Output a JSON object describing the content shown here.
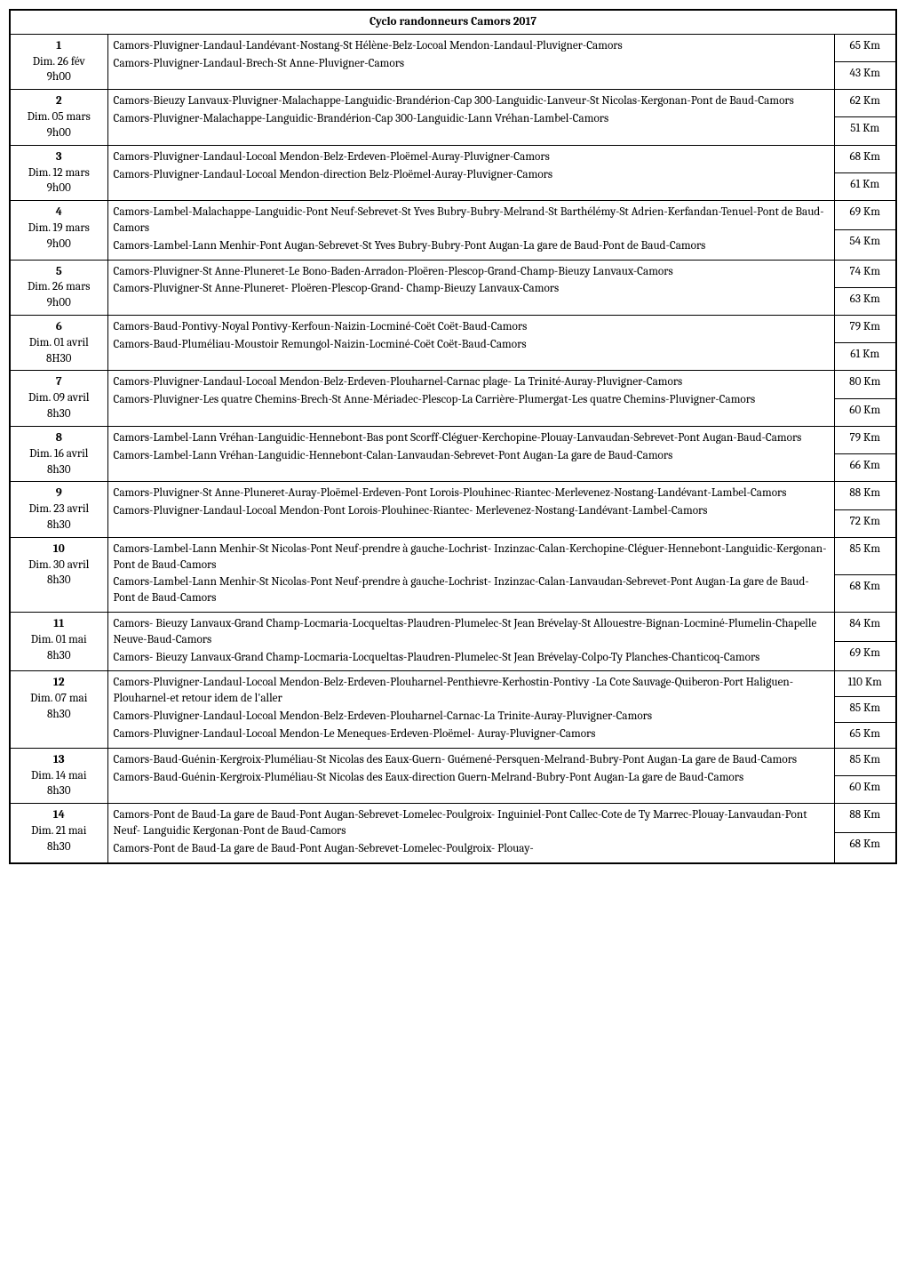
{
  "title": "Cyclo  randonneurs Camors 2017",
  "rows": [
    {
      "num": "1",
      "date": "Dim.  26 fév",
      "time": "9h00",
      "routes": [
        "Camors-Pluvigner-Landaul-Landévant-Nostang-St Hélène-Belz-Locoal Mendon-Landaul-Pluvigner-Camors",
        "Camors-Pluvigner-Landaul-Brech-St Anne-Pluvigner-Camors"
      ],
      "km": [
        "65 Km",
        "43 Km"
      ]
    },
    {
      "num": "2",
      "date": "Dim.  05 mars",
      "time": "9h00",
      "routes": [
        "Camors-Bieuzy Lanvaux-Pluvigner-Malachappe-Languidic-Brandérion-Cap 300-Languidic-Lanveur-St Nicolas-Kergonan-Pont de Baud-Camors",
        "Camors-Pluvigner-Malachappe-Languidic-Brandérion-Cap 300-Languidic-Lann Vréhan-Lambel-Camors"
      ],
      "km": [
        "62 Km",
        "51 Km"
      ]
    },
    {
      "num": "3",
      "date": "Dim.  12 mars",
      "time": "9h00",
      "routes": [
        "Camors-Pluvigner-Landaul-Locoal Mendon-Belz-Erdeven-Ploëmel-Auray-Pluvigner-Camors",
        "Camors-Pluvigner-Landaul-Locoal Mendon-direction Belz-Ploëmel-Auray-Pluvigner-Camors"
      ],
      "km": [
        "68 Km",
        "61 Km"
      ]
    },
    {
      "num": "4",
      "date": "Dim.  19 mars",
      "time": "9h00",
      "routes": [
        "Camors-Lambel-Malachappe-Languidic-Pont Neuf-Sebrevet-St Yves Bubry-Bubry-Melrand-St Barthélémy-St Adrien-Kerfandan-Tenuel-Pont de Baud-Camors",
        "Camors-Lambel-Lann Menhir-Pont Augan-Sebrevet-St Yves Bubry-Bubry-Pont Augan-La gare de Baud-Pont de Baud-Camors"
      ],
      "km": [
        "69 Km",
        "54 Km"
      ]
    },
    {
      "num": "5",
      "date": "Dim.  26 mars",
      "time": "9h00",
      "routes": [
        "Camors-Pluvigner-St Anne-Pluneret-Le Bono-Baden-Arradon-Ploëren-Plescop-Grand-Champ-Bieuzy Lanvaux-Camors",
        "Camors-Pluvigner-St Anne-Pluneret- Ploëren-Plescop-Grand- Champ-Bieuzy Lanvaux-Camors"
      ],
      "km": [
        "74 Km",
        "63 Km"
      ]
    },
    {
      "num": "6",
      "date": "Dim. 01 avril",
      "time": "8H30",
      "routes": [
        "Camors-Baud-Pontivy-Noyal Pontivy-Kerfoun-Naizin-Locminé-Coët Coët-Baud-Camors",
        "Camors-Baud-Pluméliau-Moustoir Remungol-Naizin-Locminé-Coët Coët-Baud-Camors"
      ],
      "km": [
        "79 Km",
        "61 Km"
      ]
    },
    {
      "num": "7",
      "date": "Dim.  09 avril",
      "time": "8h30",
      "routes": [
        "Camors-Pluvigner-Landaul-Locoal Mendon-Belz-Erdeven-Plouharnel-Carnac plage- La Trinité-Auray-Pluvigner-Camors",
        "Camors-Pluvigner-Les quatre Chemins-Brech-St Anne-Mériadec-Plescop-La Carrière-Plumergat-Les quatre Chemins-Pluvigner-Camors"
      ],
      "km": [
        "80 Km",
        "60 Km"
      ]
    },
    {
      "num": "8",
      "date": "Dim.  16 avril",
      "time": "8h30",
      "routes": [
        "Camors-Lambel-Lann Vréhan-Languidic-Hennebont-Bas pont Scorff-Cléguer-Kerchopine-Plouay-Lanvaudan-Sebrevet-Pont Augan-Baud-Camors",
        "Camors-Lambel-Lann Vréhan-Languidic-Hennebont-Calan-Lanvaudan-Sebrevet-Pont Augan-La gare de Baud-Camors"
      ],
      "km": [
        "79 Km",
        "66 Km"
      ]
    },
    {
      "num": "9",
      "date": "Dim.  23 avril",
      "time": "8h30",
      "routes": [
        "Camors-Pluvigner-St Anne-Pluneret-Auray-Ploëmel-Erdeven-Pont Lorois-Plouhinec-Riantec-Merlevenez-Nostang-Landévant-Lambel-Camors",
        "Camors-Pluvigner-Landaul-Locoal Mendon-Pont Lorois-Plouhinec-Riantec- Merlevenez-Nostang-Landévant-Lambel-Camors"
      ],
      "km": [
        "88 Km",
        "72 Km"
      ]
    },
    {
      "num": "10",
      "date": "Dim.  30 avril",
      "time": "8h30",
      "routes": [
        "Camors-Lambel-Lann Menhir-St Nicolas-Pont Neuf-prendre à gauche-Lochrist- Inzinzac-Calan-Kerchopine-Cléguer-Hennebont-Languidic-Kergonan-Pont de Baud-Camors",
        "Camors-Lambel-Lann Menhir-St Nicolas-Pont Neuf-prendre à gauche-Lochrist- Inzinzac-Calan-Lanvaudan-Sebrevet-Pont Augan-La gare de Baud-Pont de Baud-Camors"
      ],
      "km": [
        "85 Km",
        "68 Km"
      ]
    },
    {
      "num": "11",
      "date": "Dim.  01 mai",
      "time": "8h30",
      "routes": [
        "Camors- Bieuzy Lanvaux-Grand Champ-Locmaria-Locqueltas-Plaudren-Plumelec-St Jean Brévelay-St Allouestre-Bignan-Locminé-Plumelin-Chapelle Neuve-Baud-Camors",
        "Camors- Bieuzy Lanvaux-Grand Champ-Locmaria-Locqueltas-Plaudren-Plumelec-St Jean Brévelay-Colpo-Ty Planches-Chanticoq-Camors"
      ],
      "km": [
        "84 Km",
        "69 Km"
      ]
    },
    {
      "num": "12",
      "date": "Dim.  07 mai",
      "time": "8h30",
      "routes": [
        "Camors-Pluvigner-Landaul-Locoal Mendon-Belz-Erdeven-Plouharnel-Penthievre-Kerhostin-Pontivy -La Cote Sauvage-Quiberon-Port Haliguen-Plouharnel-et retour idem de l'aller",
        "Camors-Pluvigner-Landaul-Locoal Mendon-Belz-Erdeven-Plouharnel-Carnac-La Trinite-Auray-Pluvigner-Camors",
        "Camors-Pluvigner-Landaul-Locoal Mendon-Le Meneques-Erdeven-Ploëmel- Auray-Pluvigner-Camors"
      ],
      "km": [
        "110 Km",
        "85 Km",
        "65 Km"
      ]
    },
    {
      "num": "13",
      "date": "Dim.  14 mai",
      "time": "8h30",
      "routes": [
        "Camors-Baud-Guénin-Kergroix-Pluméliau-St Nicolas des Eaux-Guern- Guémené-Persquen-Melrand-Bubry-Pont Augan-La gare de Baud-Camors",
        "Camors-Baud-Guénin-Kergroix-Pluméliau-St Nicolas des Eaux-direction Guern-Melrand-Bubry-Pont Augan-La gare de Baud-Camors"
      ],
      "km": [
        "85 Km",
        "60 Km"
      ]
    },
    {
      "num": "14",
      "date": "Dim.  21 mai",
      "time": "8h30",
      "routes": [
        "Camors-Pont de Baud-La gare de Baud-Pont Augan-Sebrevet-Lomelec-Poulgroix- Inguiniel-Pont Callec-Cote de Ty Marrec-Plouay-Lanvaudan-Pont Neuf- Languidic Kergonan-Pont de Baud-Camors",
        "Camors-Pont de Baud-La gare de Baud-Pont Augan-Sebrevet-Lomelec-Poulgroix- Plouay-"
      ],
      "km": [
        "88 Km",
        "68 Km"
      ]
    }
  ]
}
